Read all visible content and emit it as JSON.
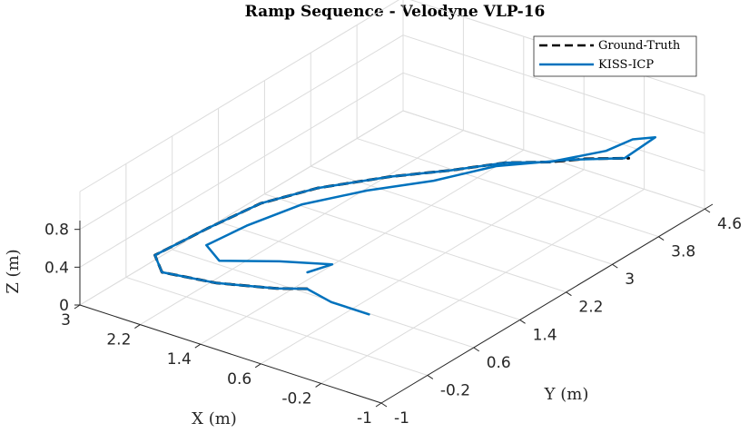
{
  "chart_data": {
    "type": "line",
    "title": "Ramp Sequence - Velodyne VLP-16",
    "xlabel": "X (m)",
    "ylabel": "Y (m)",
    "zlabel": "Z (m)",
    "x_ticks": [
      3,
      2.2,
      1.4,
      0.6,
      -0.2,
      -1
    ],
    "y_ticks": [
      -1,
      -0.2,
      0.6,
      1.4,
      2.2,
      3,
      3.8,
      4.6
    ],
    "z_ticks": [
      0,
      0.4,
      0.8
    ],
    "xlim": [
      -1,
      3
    ],
    "ylim": [
      -1,
      4.6
    ],
    "zlim": [
      0,
      1.2
    ],
    "grid": true,
    "legend_position": "top-right",
    "colors": {
      "ground_truth": "#000000",
      "kiss_icp": "#0072BD"
    },
    "series": [
      {
        "name": "Ground-Truth",
        "style": "dashed",
        "points": [
          [
            0.6,
            -0.2,
            0.5
          ],
          [
            1.0,
            -0.2,
            0.4
          ],
          [
            1.8,
            -0.2,
            0.25
          ],
          [
            2.6,
            -0.1,
            0.12
          ],
          [
            3.0,
            0.3,
            0.05
          ],
          [
            3.0,
            1.2,
            0.0
          ],
          [
            2.9,
            2.0,
            0.0
          ],
          [
            2.6,
            2.6,
            0.02
          ],
          [
            2.1,
            3.2,
            0.05
          ],
          [
            1.6,
            3.6,
            0.1
          ],
          [
            1.1,
            3.9,
            0.2
          ],
          [
            0.6,
            4.0,
            0.3
          ],
          [
            0.2,
            4.1,
            0.4
          ],
          [
            -0.3,
            4.2,
            0.5
          ]
        ]
      },
      {
        "name": "KISS-ICP",
        "style": "solid",
        "points": [
          [
            -0.3,
            -0.3,
            0.5
          ],
          [
            0.2,
            -0.3,
            0.5
          ],
          [
            0.6,
            -0.2,
            0.5
          ],
          [
            1.0,
            -0.2,
            0.4
          ],
          [
            1.8,
            -0.2,
            0.25
          ],
          [
            2.6,
            -0.1,
            0.12
          ],
          [
            3.0,
            0.3,
            0.05
          ],
          [
            3.0,
            1.2,
            0.0
          ],
          [
            2.9,
            2.0,
            0.0
          ],
          [
            2.6,
            2.6,
            0.02
          ],
          [
            2.1,
            3.2,
            0.05
          ],
          [
            1.6,
            3.6,
            0.1
          ],
          [
            1.1,
            3.9,
            0.2
          ],
          [
            0.6,
            4.0,
            0.3
          ],
          [
            0.0,
            4.2,
            0.5
          ],
          [
            -0.2,
            4.4,
            0.6
          ],
          [
            -0.5,
            4.4,
            0.7
          ],
          [
            -0.4,
            4.0,
            0.6
          ],
          [
            0.2,
            3.8,
            0.5
          ],
          [
            1.0,
            3.6,
            0.3
          ],
          [
            1.6,
            3.3,
            0.1
          ],
          [
            2.1,
            2.8,
            0.05
          ],
          [
            2.5,
            2.2,
            0.02
          ],
          [
            2.7,
            1.5,
            0.0
          ],
          [
            2.7,
            0.8,
            0.05
          ],
          [
            2.3,
            0.5,
            0.1
          ],
          [
            1.5,
            0.5,
            0.3
          ],
          [
            0.8,
            0.5,
            0.45
          ],
          [
            0.9,
            0.2,
            0.45
          ]
        ]
      }
    ]
  }
}
